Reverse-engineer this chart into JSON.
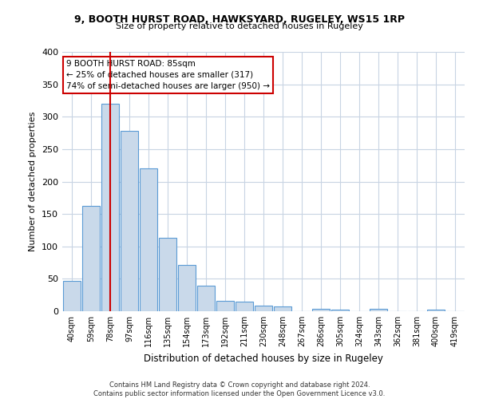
{
  "title": "9, BOOTH HURST ROAD, HAWKSYARD, RUGELEY, WS15 1RP",
  "subtitle": "Size of property relative to detached houses in Rugeley",
  "xlabel": "Distribution of detached houses by size in Rugeley",
  "ylabel": "Number of detached properties",
  "footer_line1": "Contains HM Land Registry data © Crown copyright and database right 2024.",
  "footer_line2": "Contains public sector information licensed under the Open Government Licence v3.0.",
  "categories": [
    "40sqm",
    "59sqm",
    "78sqm",
    "97sqm",
    "116sqm",
    "135sqm",
    "154sqm",
    "173sqm",
    "192sqm",
    "211sqm",
    "230sqm",
    "248sqm",
    "267sqm",
    "286sqm",
    "305sqm",
    "324sqm",
    "343sqm",
    "362sqm",
    "381sqm",
    "400sqm",
    "419sqm"
  ],
  "values": [
    47,
    162,
    320,
    278,
    220,
    113,
    71,
    40,
    16,
    15,
    9,
    8,
    0,
    4,
    3,
    0,
    4,
    0,
    0,
    3,
    0
  ],
  "bar_color": "#c9d9ea",
  "bar_edge_color": "#5b9bd5",
  "red_line_index": 2,
  "annotation_text": "9 BOOTH HURST ROAD: 85sqm\n← 25% of detached houses are smaller (317)\n74% of semi-detached houses are larger (950) →",
  "annotation_box_color": "#ffffff",
  "annotation_box_edge": "#cc0000",
  "red_line_color": "#cc0000",
  "ylim": [
    0,
    400
  ],
  "yticks": [
    0,
    50,
    100,
    150,
    200,
    250,
    300,
    350,
    400
  ],
  "background_color": "#ffffff",
  "grid_color": "#c8d4e3"
}
